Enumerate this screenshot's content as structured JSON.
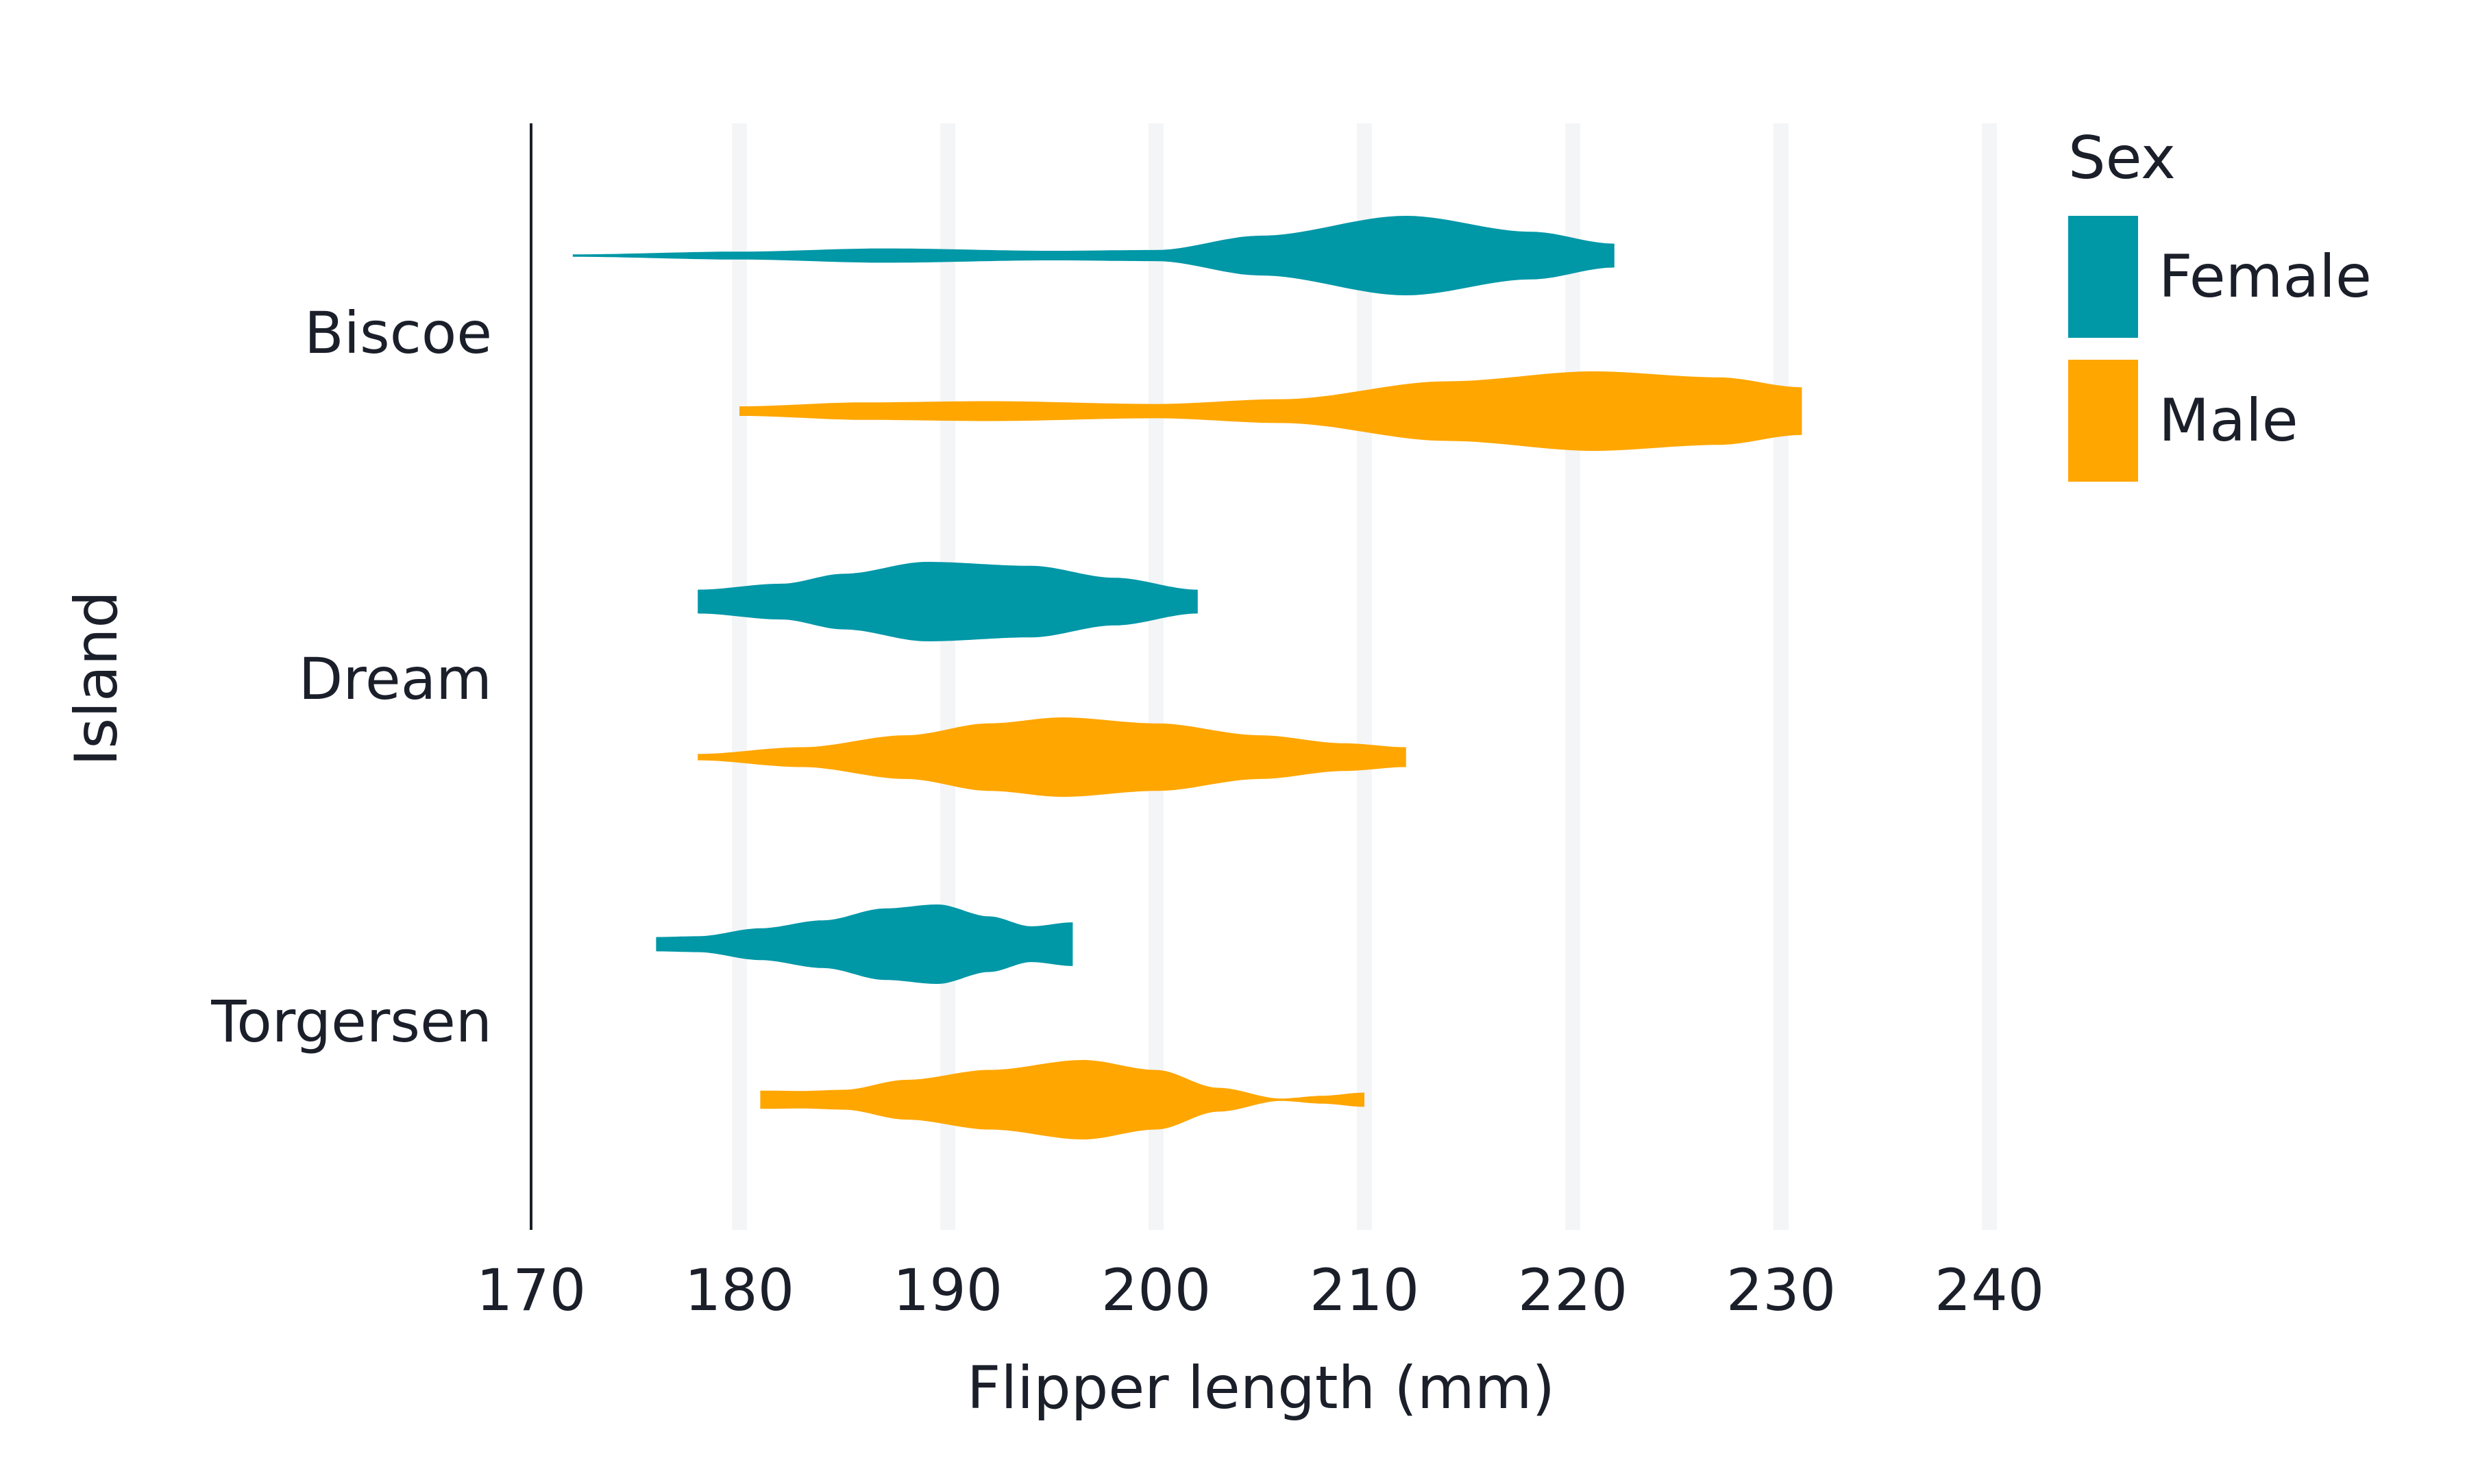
{
  "chart_data": {
    "type": "violin",
    "orientation": "horizontal",
    "xlabel": "Flipper length (mm)",
    "ylabel": "Island",
    "xlim": [
      170,
      240
    ],
    "xticks": [
      170,
      180,
      190,
      200,
      210,
      220,
      230,
      240
    ],
    "grid": "vertical",
    "categories": [
      "Biscoe",
      "Dream",
      "Torgersen"
    ],
    "legend": {
      "title": "Sex",
      "placement": "right",
      "entries": [
        {
          "name": "Female",
          "color": "#0097a7"
        },
        {
          "name": "Male",
          "color": "#ffa600"
        }
      ]
    },
    "series": [
      {
        "name": "Female",
        "color": "#0097a7",
        "violins": [
          {
            "category": "Biscoe",
            "min": 172,
            "max": 222,
            "density": [
              [
                172,
                0.03
              ],
              [
                180,
                0.1
              ],
              [
                187,
                0.18
              ],
              [
                195,
                0.12
              ],
              [
                200,
                0.14
              ],
              [
                205,
                0.5
              ],
              [
                212,
                1.0
              ],
              [
                218,
                0.6
              ],
              [
                222,
                0.3
              ]
            ]
          },
          {
            "category": "Dream",
            "min": 178,
            "max": 202,
            "density": [
              [
                178,
                0.3
              ],
              [
                182,
                0.45
              ],
              [
                185,
                0.7
              ],
              [
                189,
                1.0
              ],
              [
                194,
                0.9
              ],
              [
                198,
                0.6
              ],
              [
                202,
                0.3
              ]
            ]
          },
          {
            "category": "Torgersen",
            "min": 176,
            "max": 196,
            "density": [
              [
                176,
                0.18
              ],
              [
                178,
                0.2
              ],
              [
                181,
                0.4
              ],
              [
                184,
                0.6
              ],
              [
                187,
                0.9
              ],
              [
                189.5,
                1.0
              ],
              [
                192,
                0.7
              ],
              [
                194,
                0.45
              ],
              [
                196,
                0.55
              ]
            ]
          }
        ]
      },
      {
        "name": "Male",
        "color": "#ffa600",
        "violins": [
          {
            "category": "Biscoe",
            "min": 180,
            "max": 231,
            "density": [
              [
                180,
                0.12
              ],
              [
                186,
                0.22
              ],
              [
                192,
                0.25
              ],
              [
                200,
                0.18
              ],
              [
                206,
                0.3
              ],
              [
                214,
                0.75
              ],
              [
                221,
                1.0
              ],
              [
                227,
                0.85
              ],
              [
                231,
                0.6
              ]
            ]
          },
          {
            "category": "Dream",
            "min": 178,
            "max": 212,
            "density": [
              [
                178,
                0.08
              ],
              [
                183,
                0.25
              ],
              [
                188,
                0.55
              ],
              [
                192,
                0.85
              ],
              [
                195.5,
                1.0
              ],
              [
                200,
                0.85
              ],
              [
                205,
                0.55
              ],
              [
                209,
                0.35
              ],
              [
                212,
                0.25
              ]
            ]
          },
          {
            "category": "Torgersen",
            "min": 181,
            "max": 210,
            "density": [
              [
                181,
                0.23
              ],
              [
                183,
                0.22
              ],
              [
                185,
                0.25
              ],
              [
                188,
                0.5
              ],
              [
                192,
                0.75
              ],
              [
                196.5,
                1.0
              ],
              [
                200,
                0.75
              ],
              [
                203,
                0.3
              ],
              [
                206,
                0.03
              ],
              [
                208,
                0.1
              ],
              [
                210,
                0.18
              ]
            ]
          }
        ]
      }
    ]
  }
}
